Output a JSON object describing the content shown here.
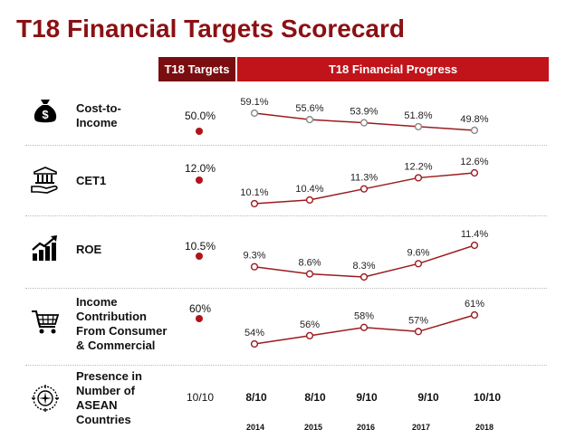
{
  "title": "T18 Financial Targets Scorecard",
  "headers": {
    "targets": "T18 Targets",
    "progress": "T18 Financial Progress"
  },
  "colors": {
    "title": "#8b1014",
    "target_header": "#7a0d10",
    "progress_header": "#c0141a",
    "line": "#9b1b1f",
    "dot": "#b0141a"
  },
  "rows": [
    {
      "label": "Cost-to-\nIncome",
      "icon": "money-bag-icon",
      "target": "50.0%"
    },
    {
      "label": "CET1",
      "icon": "bank-hand-icon",
      "target": "12.0%"
    },
    {
      "label": "ROE",
      "icon": "growth-chart-icon",
      "target": "10.5%"
    },
    {
      "label": "Income\nContribution\nFrom Consumer\n& Commercial",
      "icon": "shopping-cart-icon",
      "target": "60%"
    },
    {
      "label": "Presence in\nNumber of\nASEAN\nCountries",
      "icon": "asean-emblem-icon",
      "target": "10/10"
    }
  ],
  "years": [
    "2014",
    "2015",
    "2016",
    "2017",
    "2018"
  ],
  "chart_data": [
    {
      "type": "line",
      "name": "Cost-to-Income",
      "x": [
        "2014",
        "2015",
        "2016",
        "2017",
        "2018"
      ],
      "values": [
        59.1,
        55.6,
        53.9,
        51.8,
        49.8
      ],
      "labels": [
        "59.1%",
        "55.6%",
        "53.9%",
        "51.8%",
        "49.8%"
      ],
      "hollow": true
    },
    {
      "type": "line",
      "name": "CET1",
      "x": [
        "2014",
        "2015",
        "2016",
        "2017",
        "2018"
      ],
      "values": [
        10.1,
        10.4,
        11.3,
        12.2,
        12.6
      ],
      "labels": [
        "10.1%",
        "10.4%",
        "11.3%",
        "12.2%",
        "12.6%"
      ],
      "hollow": false
    },
    {
      "type": "line",
      "name": "ROE",
      "x": [
        "2014",
        "2015",
        "2016",
        "2017",
        "2018"
      ],
      "values": [
        9.3,
        8.6,
        8.3,
        9.6,
        11.4
      ],
      "labels": [
        "9.3%",
        "8.6%",
        "8.3%",
        "9.6%",
        "11.4%"
      ],
      "hollow": false
    },
    {
      "type": "line",
      "name": "Income Contribution From Consumer & Commercial",
      "x": [
        "2014",
        "2015",
        "2016",
        "2017",
        "2018"
      ],
      "values": [
        54,
        56,
        58,
        57,
        61
      ],
      "labels": [
        "54%",
        "56%",
        "58%",
        "57%",
        "61%"
      ],
      "hollow": false
    }
  ],
  "presence": [
    "8/10",
    "8/10",
    "9/10",
    "9/10",
    "10/10"
  ]
}
